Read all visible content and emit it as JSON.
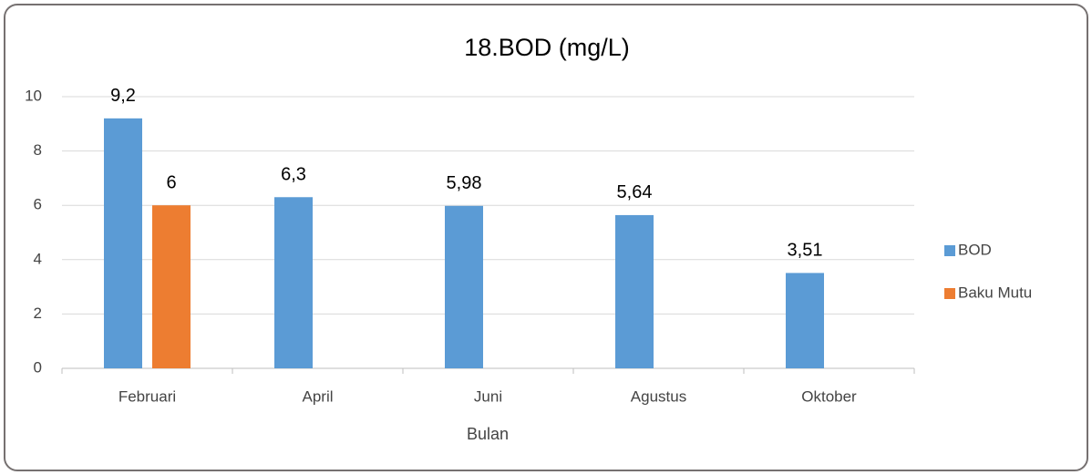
{
  "chart_data": {
    "type": "bar",
    "title": "18.BOD (mg/L)",
    "x_label": "Bulan",
    "categories": [
      "Februari",
      "April",
      "Juni",
      "Agustus",
      "Oktober"
    ],
    "series": [
      {
        "name": "BOD",
        "color": "#5b9bd5",
        "values": [
          9.2,
          6.3,
          5.98,
          5.64,
          3.51
        ],
        "value_labels": [
          "9,2",
          "6,3",
          "5,98",
          "5,64",
          "3,51"
        ]
      },
      {
        "name": "Baku Mutu",
        "color": "#ed7d31",
        "values": [
          6,
          null,
          null,
          null,
          null
        ],
        "value_labels": [
          "6",
          null,
          null,
          null,
          null
        ]
      }
    ],
    "ylim": [
      0,
      10
    ],
    "yticks": [
      0,
      2,
      4,
      6,
      8,
      10
    ],
    "grid": true,
    "legend": "right"
  }
}
